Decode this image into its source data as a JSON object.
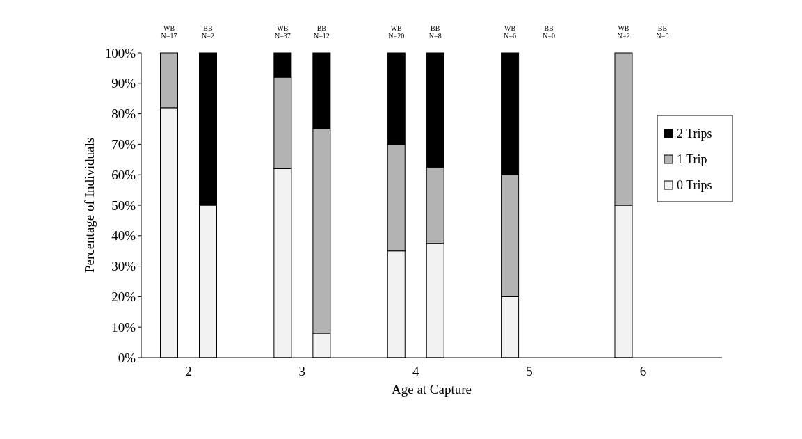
{
  "chart_data": {
    "type": "bar",
    "stacked": true,
    "xlabel": "Age at Capture",
    "ylabel": "Percentage of Individuals",
    "categories": [
      "WB\nN=17",
      "BB\nN=2",
      "WB\nN=37",
      "BB\nN=12",
      "WB\nN=20",
      "BB\nN=8",
      "WB\nN=6",
      "BB\nN=0",
      "WB\nN=2",
      "BB\nN=0"
    ],
    "annotations": [
      "2",
      "3",
      "4",
      "5",
      "6"
    ],
    "series": [
      {
        "name": "0 Trips",
        "color": "#f2f2f2",
        "values": [
          82,
          50,
          62,
          8,
          35,
          37.5,
          20,
          null,
          50,
          null
        ]
      },
      {
        "name": "1 Trip",
        "color": "#b3b3b3",
        "values": [
          18,
          0,
          30,
          67,
          35,
          25,
          40,
          null,
          50,
          null
        ]
      },
      {
        "name": "2 Trips",
        "color": "#000000",
        "values": [
          0,
          50,
          8,
          25,
          30,
          37.5,
          40,
          null,
          0,
          null
        ]
      }
    ],
    "ylim": [
      0,
      100
    ],
    "yticks": [
      {
        "value": 0,
        "label": "0%"
      },
      {
        "value": 10,
        "label": "10%"
      },
      {
        "value": 20,
        "label": "20%"
      },
      {
        "value": 30,
        "label": "30%"
      },
      {
        "value": 40,
        "label": "40%"
      },
      {
        "value": 50,
        "label": "50%"
      },
      {
        "value": 60,
        "label": "60%"
      },
      {
        "value": 70,
        "label": "70%"
      },
      {
        "value": 80,
        "label": "80%"
      },
      {
        "value": 90,
        "label": "90%"
      },
      {
        "value": 100,
        "label": "100%"
      }
    ],
    "grid": false,
    "legend": "right"
  }
}
